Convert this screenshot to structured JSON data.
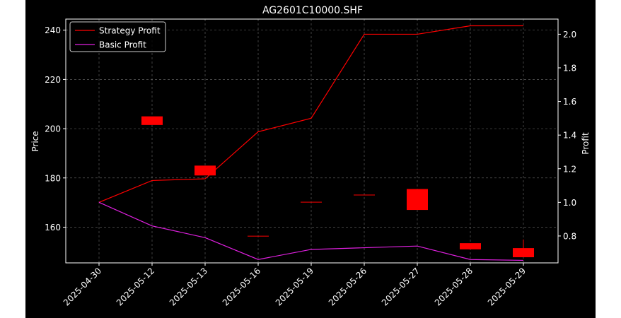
{
  "chart_data": {
    "type": "candlestick_with_lines",
    "title": "AG2601C10000.SHF",
    "xlabel": "",
    "ylabel_left": "Price",
    "ylabel_right": "Profit",
    "categories": [
      "2025-04-30",
      "2025-05-12",
      "2025-05-13",
      "2025-05-16",
      "2025-05-19",
      "2025-05-26",
      "2025-05-27",
      "2025-05-28",
      "2025-05-29"
    ],
    "ylim_left": [
      145.5,
      244.5
    ],
    "ylim_right": [
      0.64,
      2.09
    ],
    "yticks_left": [
      160,
      180,
      200,
      220,
      240
    ],
    "yticks_right": [
      0.8,
      1.0,
      1.2,
      1.4,
      1.6,
      1.8,
      2.0
    ],
    "grid": true,
    "legend_position": "top-left",
    "candles": [
      {
        "date": "2025-05-12",
        "open": 205.0,
        "close": 201.5,
        "high": 205.0,
        "low": 201.5
      },
      {
        "date": "2025-05-13",
        "open": 185.0,
        "close": 181.0,
        "high": 185.0,
        "low": 181.0
      },
      {
        "date": "2025-05-16",
        "open": 156.5,
        "close": 156.3,
        "high": 156.5,
        "low": 156.3
      },
      {
        "date": "2025-05-19",
        "open": 170.3,
        "close": 170.1,
        "high": 170.3,
        "low": 170.1
      },
      {
        "date": "2025-05-26",
        "open": 173.2,
        "close": 173.0,
        "high": 173.2,
        "low": 173.0
      },
      {
        "date": "2025-05-27",
        "open": 175.5,
        "close": 167.0,
        "high": 175.5,
        "low": 167.0
      },
      {
        "date": "2025-05-28",
        "open": 153.5,
        "close": 151.0,
        "high": 153.5,
        "low": 151.0
      },
      {
        "date": "2025-05-29",
        "open": 151.5,
        "close": 147.8,
        "high": 155.0,
        "low": 147.8
      }
    ],
    "candle_color": "#ff0000",
    "series": [
      {
        "name": "Strategy Profit",
        "color": "#ff0000",
        "axis": "right",
        "values": [
          1.0,
          1.13,
          1.14,
          1.42,
          1.5,
          2.0,
          2.0,
          2.05,
          2.05
        ]
      },
      {
        "name": "Basic Profit",
        "color": "#e020e0",
        "axis": "right",
        "values": [
          1.0,
          0.86,
          0.79,
          0.66,
          0.72,
          0.73,
          0.74,
          0.66,
          0.655
        ]
      }
    ]
  }
}
